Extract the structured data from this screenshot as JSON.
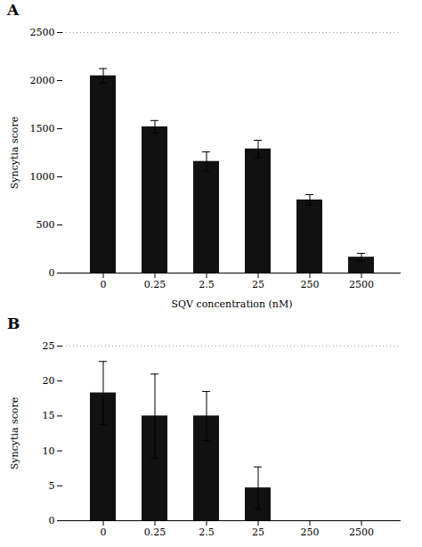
{
  "chart_data": [
    {
      "type": "bar",
      "title": "A",
      "categories": [
        "0",
        "0.25",
        "2.5",
        "25",
        "250",
        "2500"
      ],
      "values": [
        2050,
        1520,
        1160,
        1290,
        760,
        165
      ],
      "errors": [
        75,
        65,
        100,
        90,
        55,
        40
      ],
      "color": "#111111",
      "xlabel": "SQV concentration (nM)",
      "ylabel": "Syncytia score",
      "ylim": [
        0,
        2500
      ],
      "yticks": [
        0,
        500,
        1000,
        1500,
        2000,
        2500
      ]
    },
    {
      "type": "bar",
      "title": "B",
      "categories": [
        "0",
        "0.25",
        "2.5",
        "25",
        "250",
        "2500"
      ],
      "values": [
        18.3,
        15.0,
        15.0,
        4.7,
        0,
        0
      ],
      "errors": [
        4.5,
        6.0,
        3.5,
        3.0,
        0,
        0
      ],
      "color": "#111111",
      "ylabel": "Syncytia score",
      "ylim": [
        0,
        25
      ],
      "yticks": [
        0,
        5,
        10,
        15,
        20,
        25
      ]
    }
  ]
}
